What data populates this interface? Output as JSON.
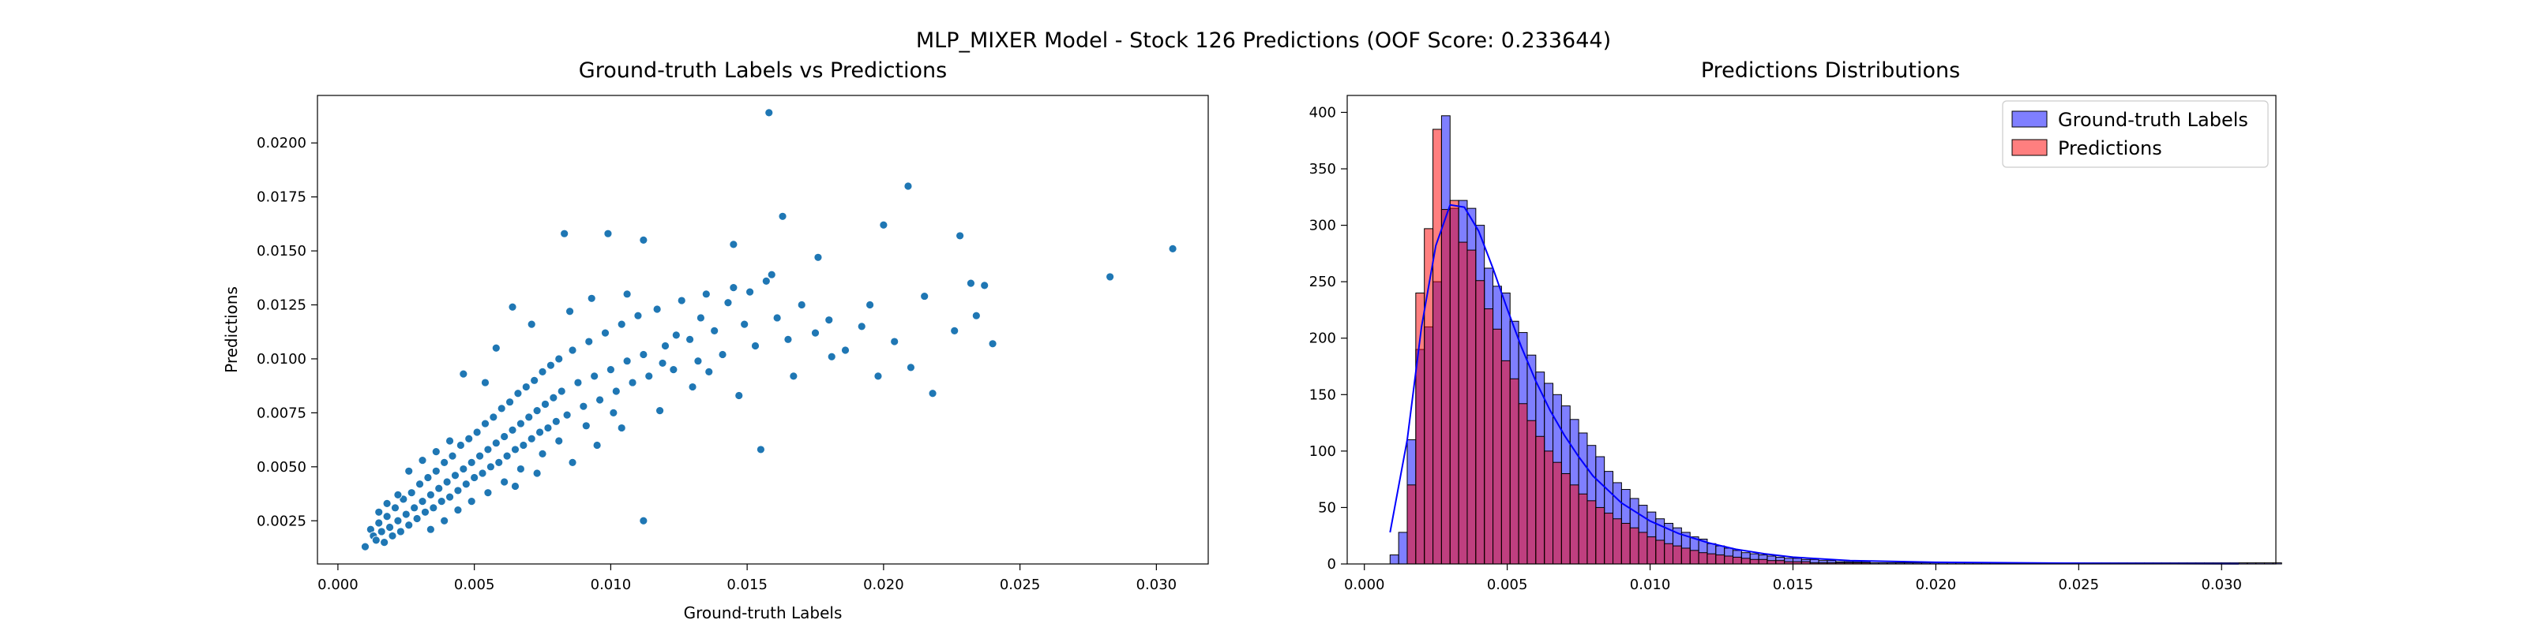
{
  "figure": {
    "suptitle": "MLP_MIXER Model - Stock 126 Predictions (OOF Score: 0.233644)"
  },
  "chart_data": [
    {
      "type": "scatter",
      "title": "Ground-truth Labels vs Predictions",
      "xlabel": "Ground-truth Labels",
      "ylabel": "Predictions",
      "xlim": [
        -0.00075,
        0.0319
      ],
      "ylim": [
        0.0005,
        0.0222
      ],
      "xticks": [
        "0.000",
        "0.005",
        "0.010",
        "0.015",
        "0.020",
        "0.025",
        "0.030"
      ],
      "yticks": [
        "0.0025",
        "0.0050",
        "0.0075",
        "0.0100",
        "0.0125",
        "0.0150",
        "0.0175",
        "0.0200"
      ],
      "grid": false,
      "color": "#1f77b4",
      "points": [
        [
          0.001,
          0.0013
        ],
        [
          0.0012,
          0.0021
        ],
        [
          0.0013,
          0.0018
        ],
        [
          0.0014,
          0.0016
        ],
        [
          0.0015,
          0.0024
        ],
        [
          0.0016,
          0.002
        ],
        [
          0.0017,
          0.0015
        ],
        [
          0.0018,
          0.0027
        ],
        [
          0.0019,
          0.0022
        ],
        [
          0.002,
          0.0018
        ],
        [
          0.0021,
          0.0031
        ],
        [
          0.0022,
          0.0025
        ],
        [
          0.0023,
          0.002
        ],
        [
          0.0024,
          0.0035
        ],
        [
          0.0025,
          0.0028
        ],
        [
          0.0026,
          0.0023
        ],
        [
          0.0027,
          0.0038
        ],
        [
          0.0028,
          0.0031
        ],
        [
          0.0029,
          0.0026
        ],
        [
          0.003,
          0.0042
        ],
        [
          0.0031,
          0.0034
        ],
        [
          0.0032,
          0.0029
        ],
        [
          0.0033,
          0.0045
        ],
        [
          0.0034,
          0.0037
        ],
        [
          0.0035,
          0.0031
        ],
        [
          0.0036,
          0.0048
        ],
        [
          0.0037,
          0.004
        ],
        [
          0.0038,
          0.0034
        ],
        [
          0.0039,
          0.0052
        ],
        [
          0.004,
          0.0043
        ],
        [
          0.0041,
          0.0036
        ],
        [
          0.0042,
          0.0055
        ],
        [
          0.0043,
          0.0046
        ],
        [
          0.0044,
          0.0039
        ],
        [
          0.0045,
          0.006
        ],
        [
          0.0046,
          0.0049
        ],
        [
          0.0047,
          0.0042
        ],
        [
          0.0048,
          0.0063
        ],
        [
          0.0049,
          0.0052
        ],
        [
          0.005,
          0.0045
        ],
        [
          0.0051,
          0.0066
        ],
        [
          0.0052,
          0.0055
        ],
        [
          0.0053,
          0.0047
        ],
        [
          0.0054,
          0.007
        ],
        [
          0.0055,
          0.0058
        ],
        [
          0.0056,
          0.005
        ],
        [
          0.0057,
          0.0073
        ],
        [
          0.0058,
          0.0061
        ],
        [
          0.0059,
          0.0052
        ],
        [
          0.006,
          0.0077
        ],
        [
          0.0061,
          0.0064
        ],
        [
          0.0062,
          0.0055
        ],
        [
          0.0063,
          0.008
        ],
        [
          0.0064,
          0.0067
        ],
        [
          0.0065,
          0.0058
        ],
        [
          0.0066,
          0.0084
        ],
        [
          0.0067,
          0.007
        ],
        [
          0.0068,
          0.006
        ],
        [
          0.0069,
          0.0087
        ],
        [
          0.007,
          0.0073
        ],
        [
          0.0071,
          0.0063
        ],
        [
          0.0072,
          0.009
        ],
        [
          0.0073,
          0.0076
        ],
        [
          0.0074,
          0.0066
        ],
        [
          0.0075,
          0.0094
        ],
        [
          0.0076,
          0.0079
        ],
        [
          0.0077,
          0.0068
        ],
        [
          0.0078,
          0.0097
        ],
        [
          0.0079,
          0.0082
        ],
        [
          0.008,
          0.0071
        ],
        [
          0.0081,
          0.01
        ],
        [
          0.0082,
          0.0085
        ],
        [
          0.0084,
          0.0074
        ],
        [
          0.0086,
          0.0104
        ],
        [
          0.0088,
          0.0089
        ],
        [
          0.009,
          0.0078
        ],
        [
          0.0092,
          0.0108
        ],
        [
          0.0094,
          0.0092
        ],
        [
          0.0096,
          0.0081
        ],
        [
          0.0098,
          0.0112
        ],
        [
          0.01,
          0.0095
        ],
        [
          0.0102,
          0.0085
        ],
        [
          0.0104,
          0.0116
        ],
        [
          0.0106,
          0.0099
        ],
        [
          0.0108,
          0.0089
        ],
        [
          0.011,
          0.012
        ],
        [
          0.0112,
          0.0102
        ],
        [
          0.0114,
          0.0092
        ],
        [
          0.0117,
          0.0123
        ],
        [
          0.012,
          0.0106
        ],
        [
          0.0123,
          0.0095
        ],
        [
          0.0126,
          0.0127
        ],
        [
          0.0129,
          0.0109
        ],
        [
          0.0132,
          0.0099
        ],
        [
          0.0135,
          0.013
        ],
        [
          0.0138,
          0.0113
        ],
        [
          0.0141,
          0.0102
        ],
        [
          0.0145,
          0.0133
        ],
        [
          0.0149,
          0.0116
        ],
        [
          0.0153,
          0.0106
        ],
        [
          0.0157,
          0.0136
        ],
        [
          0.0161,
          0.0119
        ],
        [
          0.0165,
          0.0109
        ],
        [
          0.017,
          0.0125
        ],
        [
          0.0175,
          0.0112
        ],
        [
          0.018,
          0.0118
        ],
        [
          0.0186,
          0.0104
        ],
        [
          0.0192,
          0.0115
        ],
        [
          0.0198,
          0.0092
        ],
        [
          0.0204,
          0.0108
        ],
        [
          0.021,
          0.0096
        ],
        [
          0.0218,
          0.0084
        ],
        [
          0.0226,
          0.0113
        ],
        [
          0.0234,
          0.012
        ],
        [
          0.024,
          0.0107
        ],
        [
          0.0158,
          0.0214
        ],
        [
          0.0209,
          0.018
        ],
        [
          0.0163,
          0.0166
        ],
        [
          0.02,
          0.0162
        ],
        [
          0.0228,
          0.0157
        ],
        [
          0.0306,
          0.0151
        ],
        [
          0.0283,
          0.0138
        ],
        [
          0.0232,
          0.0135
        ],
        [
          0.0083,
          0.0158
        ],
        [
          0.0099,
          0.0158
        ],
        [
          0.0112,
          0.0155
        ],
        [
          0.0145,
          0.0153
        ],
        [
          0.0176,
          0.0147
        ],
        [
          0.0064,
          0.0124
        ],
        [
          0.0054,
          0.0089
        ],
        [
          0.0046,
          0.0093
        ],
        [
          0.0058,
          0.0105
        ],
        [
          0.0071,
          0.0116
        ],
        [
          0.0085,
          0.0122
        ],
        [
          0.0093,
          0.0128
        ],
        [
          0.0106,
          0.013
        ],
        [
          0.0112,
          0.0025
        ],
        [
          0.0155,
          0.0058
        ],
        [
          0.0065,
          0.0041
        ],
        [
          0.0073,
          0.0047
        ],
        [
          0.0086,
          0.0052
        ],
        [
          0.0095,
          0.006
        ],
        [
          0.0104,
          0.0068
        ],
        [
          0.0118,
          0.0076
        ],
        [
          0.013,
          0.0087
        ],
        [
          0.0136,
          0.0094
        ],
        [
          0.0147,
          0.0083
        ],
        [
          0.0167,
          0.0092
        ],
        [
          0.0181,
          0.0101
        ],
        [
          0.0195,
          0.0125
        ],
        [
          0.0215,
          0.0129
        ],
        [
          0.0237,
          0.0134
        ],
        [
          0.0026,
          0.0048
        ],
        [
          0.0031,
          0.0053
        ],
        [
          0.0036,
          0.0057
        ],
        [
          0.0041,
          0.0062
        ],
        [
          0.0018,
          0.0033
        ],
        [
          0.0022,
          0.0037
        ],
        [
          0.0015,
          0.0029
        ],
        [
          0.0034,
          0.0021
        ],
        [
          0.0039,
          0.0025
        ],
        [
          0.0044,
          0.003
        ],
        [
          0.0049,
          0.0034
        ],
        [
          0.0055,
          0.0038
        ],
        [
          0.0061,
          0.0043
        ],
        [
          0.0067,
          0.0049
        ],
        [
          0.0075,
          0.0056
        ],
        [
          0.0081,
          0.0062
        ],
        [
          0.0091,
          0.0069
        ],
        [
          0.0101,
          0.0075
        ],
        [
          0.0119,
          0.0098
        ],
        [
          0.0124,
          0.0111
        ],
        [
          0.0133,
          0.0119
        ],
        [
          0.0143,
          0.0126
        ],
        [
          0.0151,
          0.0131
        ],
        [
          0.0159,
          0.0139
        ]
      ]
    },
    {
      "type": "bar",
      "subtype": "histogram",
      "title": "Predictions Distributions",
      "xlabel": "",
      "ylabel": "",
      "xlim": [
        -0.0006,
        0.0319
      ],
      "ylim": [
        0,
        415
      ],
      "xticks": [
        "0.000",
        "0.005",
        "0.010",
        "0.015",
        "0.020",
        "0.025",
        "0.030"
      ],
      "yticks": [
        "0",
        "50",
        "100",
        "150",
        "200",
        "250",
        "300",
        "350",
        "400"
      ],
      "legend_position": "top-right",
      "grid": false,
      "series": [
        {
          "name": "Ground-truth Labels",
          "color": "#0000ff",
          "bin_start": 0.0009,
          "bin_width": 0.0003,
          "counts": [
            8,
            28,
            110,
            190,
            210,
            250,
            397,
            315,
            322,
            315,
            300,
            262,
            246,
            240,
            215,
            205,
            185,
            170,
            160,
            150,
            140,
            128,
            116,
            105,
            95,
            82,
            72,
            66,
            58,
            52,
            46,
            40,
            36,
            32,
            28,
            24,
            22,
            18,
            16,
            14,
            12,
            10,
            9,
            8,
            7,
            6,
            5,
            5,
            4,
            4,
            3,
            3,
            2,
            2,
            2,
            2,
            1,
            1,
            1,
            1,
            1,
            1,
            1,
            1,
            1,
            1,
            1,
            1,
            1,
            1,
            1,
            1,
            1,
            1,
            1,
            1,
            1,
            1,
            1,
            1,
            1,
            1,
            1,
            1,
            1,
            1,
            1,
            1,
            1,
            1,
            1,
            1,
            1,
            1,
            1,
            1,
            1,
            1,
            1,
            1,
            1,
            1,
            1,
            1
          ]
        },
        {
          "name": "Predictions",
          "color": "#ff0000",
          "bin_start": 0.0015,
          "bin_width": 0.0003,
          "counts": [
            70,
            240,
            297,
            385,
            314,
            322,
            285,
            278,
            251,
            226,
            208,
            180,
            164,
            142,
            127,
            113,
            100,
            90,
            80,
            70,
            62,
            56,
            50,
            45,
            40,
            36,
            32,
            28,
            24,
            21,
            18,
            16,
            14,
            12,
            10,
            9,
            8,
            7,
            6,
            5,
            4,
            4,
            3,
            3,
            2,
            2,
            2,
            1,
            1,
            1,
            1,
            1,
            1,
            1
          ]
        }
      ],
      "kde": [
        [
          0.0009,
          28
        ],
        [
          0.0015,
          110
        ],
        [
          0.002,
          210
        ],
        [
          0.0025,
          282
        ],
        [
          0.003,
          318
        ],
        [
          0.0035,
          316
        ],
        [
          0.004,
          295
        ],
        [
          0.0045,
          262
        ],
        [
          0.005,
          226
        ],
        [
          0.0055,
          192
        ],
        [
          0.006,
          162
        ],
        [
          0.0065,
          136
        ],
        [
          0.007,
          114
        ],
        [
          0.0075,
          95
        ],
        [
          0.008,
          78
        ],
        [
          0.009,
          54
        ],
        [
          0.01,
          38
        ],
        [
          0.011,
          27
        ],
        [
          0.012,
          19
        ],
        [
          0.013,
          13
        ],
        [
          0.014,
          9
        ],
        [
          0.015,
          6
        ],
        [
          0.017,
          3
        ],
        [
          0.02,
          1.5
        ],
        [
          0.025,
          0.6
        ],
        [
          0.0306,
          0.2
        ]
      ]
    }
  ]
}
